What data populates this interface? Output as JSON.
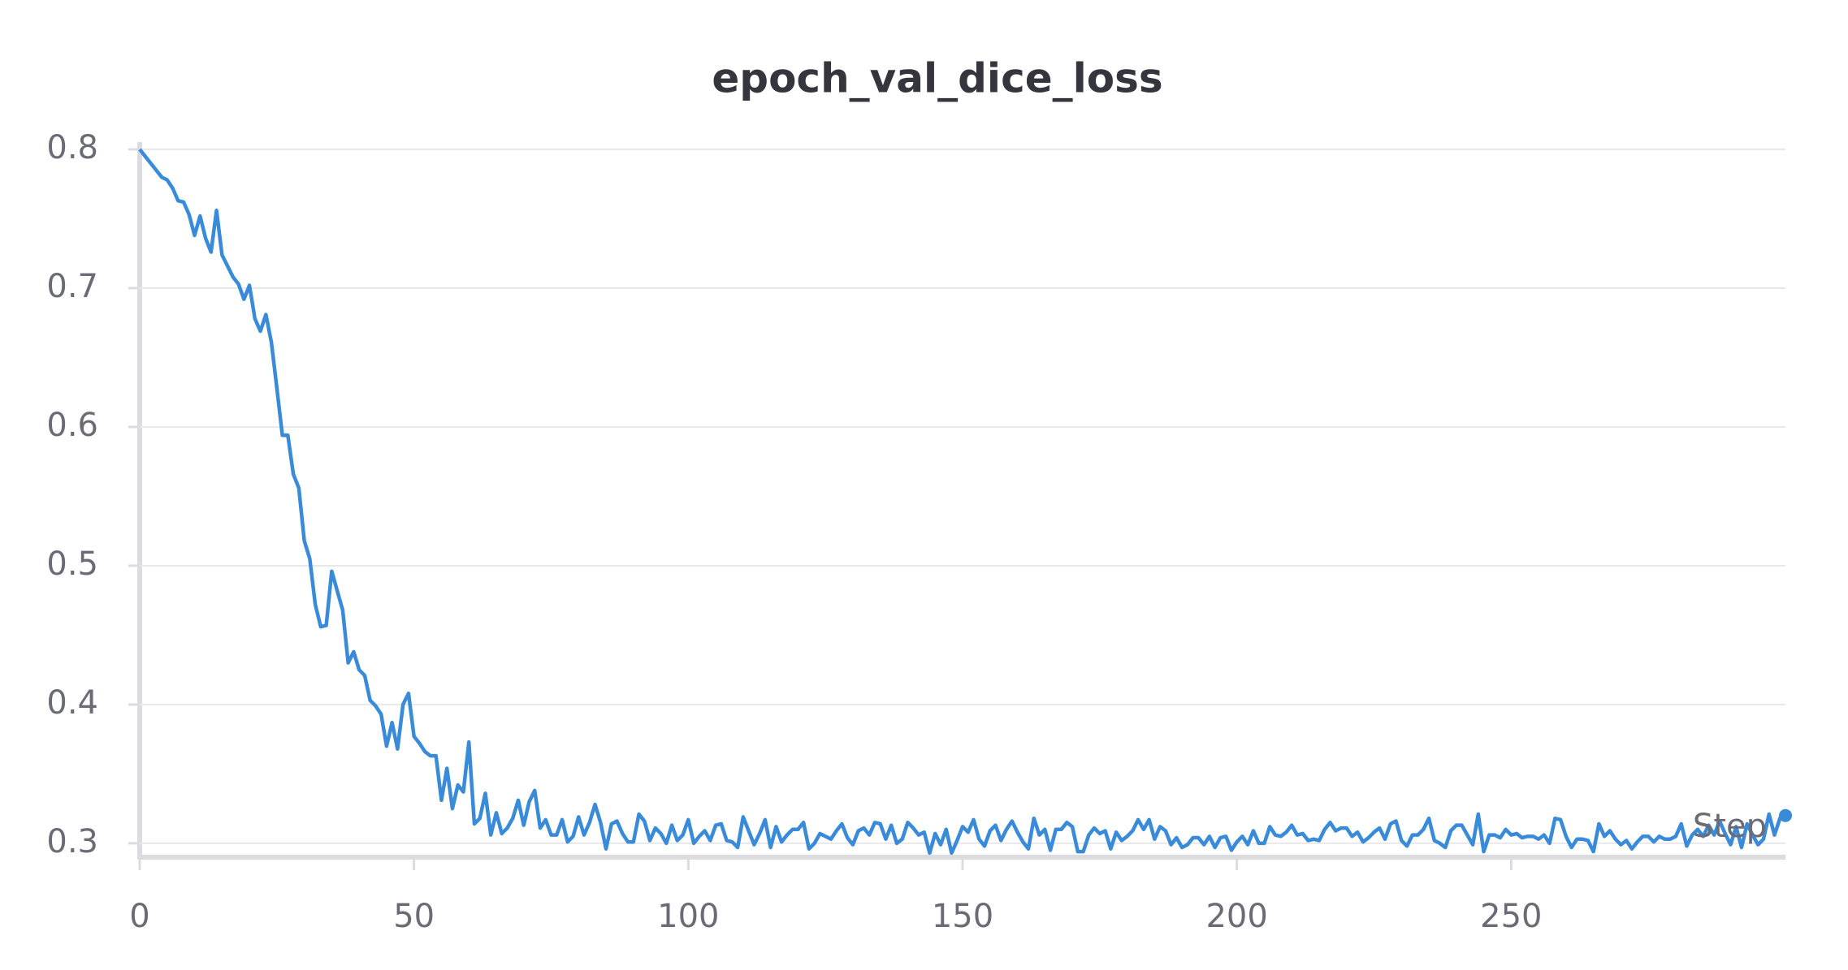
{
  "chart_data": {
    "type": "line",
    "title": "epoch_val_dice_loss",
    "x_label": "Step",
    "color": "#398bd9",
    "x": [
      0,
      1,
      2,
      3,
      4,
      5,
      6,
      7,
      8,
      9,
      10,
      11,
      12,
      13,
      14,
      15,
      16,
      17,
      18,
      19,
      20,
      21,
      22,
      23,
      24,
      25,
      26,
      27,
      28,
      29,
      30,
      31,
      32,
      33,
      34,
      35,
      36,
      37,
      38,
      39,
      40,
      41,
      42,
      43,
      44,
      45,
      46,
      47,
      48,
      49,
      50,
      51,
      52,
      53,
      54,
      55,
      56,
      57,
      58,
      59,
      60,
      61,
      62,
      63,
      64,
      65,
      66,
      67,
      68,
      69,
      70,
      71,
      72,
      73,
      74,
      75,
      76,
      77,
      78,
      79,
      80,
      81,
      82,
      83,
      84,
      85,
      86,
      87,
      88,
      89,
      90,
      91,
      92,
      93,
      94,
      95,
      96,
      97,
      98,
      99,
      100,
      101,
      102,
      103,
      104,
      105,
      106,
      107,
      108,
      109,
      110,
      111,
      112,
      113,
      114,
      115,
      116,
      117,
      118,
      119,
      120,
      121,
      122,
      123,
      124,
      125,
      126,
      127,
      128,
      129,
      130,
      131,
      132,
      133,
      134,
      135,
      136,
      137,
      138,
      139,
      140,
      141,
      142,
      143,
      144,
      145,
      146,
      147,
      148,
      149,
      150,
      151,
      152,
      153,
      154,
      155,
      156,
      157,
      158,
      159,
      160,
      161,
      162,
      163,
      164,
      165,
      166,
      167,
      168,
      169,
      170,
      171,
      172,
      173,
      174,
      175,
      176,
      177,
      178,
      179,
      180,
      181,
      182,
      183,
      184,
      185,
      186,
      187,
      188,
      189,
      190,
      191,
      192,
      193,
      194,
      195,
      196,
      197,
      198,
      199,
      200,
      201,
      202,
      203,
      204,
      205,
      206,
      207,
      208,
      209,
      210,
      211,
      212,
      213,
      214,
      215,
      216,
      217,
      218,
      219,
      220,
      221,
      222,
      223,
      224,
      225,
      226,
      227,
      228,
      229,
      230,
      231,
      232,
      233,
      234,
      235,
      236,
      237,
      238,
      239,
      240,
      241,
      242,
      243,
      244,
      245,
      246,
      247,
      248,
      249,
      250,
      251,
      252,
      253,
      254,
      255,
      256,
      257,
      258,
      259,
      260,
      261,
      262,
      263,
      264,
      265,
      266,
      267,
      268,
      269,
      270,
      271,
      272,
      273,
      274,
      275,
      276,
      277,
      278,
      279,
      280,
      281,
      282,
      283,
      284,
      285,
      286,
      287,
      288,
      289,
      290,
      291,
      292,
      293,
      294,
      295,
      296,
      297,
      298,
      299,
      300
    ],
    "values": [
      0.8,
      0.795,
      0.79,
      0.785,
      0.78,
      0.778,
      0.772,
      0.763,
      0.762,
      0.753,
      0.738,
      0.752,
      0.736,
      0.726,
      0.756,
      0.724,
      0.716,
      0.708,
      0.703,
      0.692,
      0.702,
      0.678,
      0.669,
      0.681,
      0.661,
      0.628,
      0.594,
      0.594,
      0.566,
      0.556,
      0.518,
      0.505,
      0.472,
      0.456,
      0.457,
      0.496,
      0.482,
      0.468,
      0.43,
      0.438,
      0.425,
      0.421,
      0.403,
      0.399,
      0.393,
      0.37,
      0.387,
      0.368,
      0.4,
      0.408,
      0.377,
      0.372,
      0.366,
      0.363,
      0.363,
      0.331,
      0.354,
      0.325,
      0.342,
      0.337,
      0.373,
      0.314,
      0.318,
      0.336,
      0.306,
      0.322,
      0.307,
      0.311,
      0.318,
      0.331,
      0.313,
      0.33,
      0.338,
      0.311,
      0.317,
      0.306,
      0.306,
      0.317,
      0.301,
      0.305,
      0.319,
      0.306,
      0.315,
      0.328,
      0.315,
      0.296,
      0.314,
      0.316,
      0.307,
      0.301,
      0.301,
      0.321,
      0.316,
      0.302,
      0.311,
      0.307,
      0.3,
      0.313,
      0.302,
      0.306,
      0.317,
      0.3,
      0.305,
      0.309,
      0.302,
      0.313,
      0.314,
      0.302,
      0.301,
      0.297,
      0.319,
      0.309,
      0.299,
      0.307,
      0.317,
      0.297,
      0.312,
      0.301,
      0.306,
      0.31,
      0.31,
      0.315,
      0.296,
      0.3,
      0.307,
      0.305,
      0.303,
      0.309,
      0.314,
      0.304,
      0.299,
      0.309,
      0.311,
      0.306,
      0.315,
      0.314,
      0.303,
      0.313,
      0.3,
      0.303,
      0.315,
      0.311,
      0.306,
      0.308,
      0.293,
      0.307,
      0.299,
      0.31,
      0.293,
      0.302,
      0.312,
      0.308,
      0.317,
      0.303,
      0.298,
      0.309,
      0.313,
      0.302,
      0.31,
      0.316,
      0.308,
      0.301,
      0.296,
      0.318,
      0.306,
      0.31,
      0.295,
      0.31,
      0.31,
      0.315,
      0.312,
      0.294,
      0.294,
      0.306,
      0.311,
      0.307,
      0.309,
      0.296,
      0.308,
      0.302,
      0.305,
      0.309,
      0.317,
      0.31,
      0.317,
      0.303,
      0.312,
      0.309,
      0.299,
      0.304,
      0.297,
      0.299,
      0.304,
      0.304,
      0.299,
      0.305,
      0.297,
      0.304,
      0.305,
      0.295,
      0.301,
      0.305,
      0.299,
      0.309,
      0.3,
      0.3,
      0.312,
      0.306,
      0.305,
      0.308,
      0.313,
      0.306,
      0.307,
      0.302,
      0.303,
      0.302,
      0.31,
      0.315,
      0.309,
      0.311,
      0.311,
      0.305,
      0.308,
      0.301,
      0.304,
      0.308,
      0.311,
      0.303,
      0.314,
      0.316,
      0.302,
      0.298,
      0.306,
      0.306,
      0.31,
      0.318,
      0.302,
      0.3,
      0.297,
      0.309,
      0.313,
      0.313,
      0.306,
      0.299,
      0.321,
      0.294,
      0.306,
      0.306,
      0.304,
      0.31,
      0.306,
      0.307,
      0.304,
      0.305,
      0.305,
      0.303,
      0.306,
      0.3,
      0.318,
      0.317,
      0.305,
      0.297,
      0.303,
      0.303,
      0.302,
      0.294,
      0.314,
      0.305,
      0.309,
      0.303,
      0.299,
      0.302,
      0.296,
      0.301,
      0.305,
      0.305,
      0.301,
      0.305,
      0.303,
      0.303,
      0.305,
      0.314,
      0.298,
      0.306,
      0.31,
      0.305,
      0.313,
      0.306,
      0.316,
      0.307,
      0.299,
      0.312,
      0.297,
      0.314,
      0.306,
      0.299,
      0.303,
      0.321,
      0.306,
      0.318,
      0.32
    ],
    "xlim": [
      0,
      300
    ],
    "xticks": [
      0,
      50,
      100,
      150,
      200,
      250
    ],
    "ylim": [
      0.29,
      0.8
    ],
    "yticks": [
      0.3,
      0.4,
      0.5,
      0.6,
      0.7,
      0.8
    ],
    "grid": true
  }
}
